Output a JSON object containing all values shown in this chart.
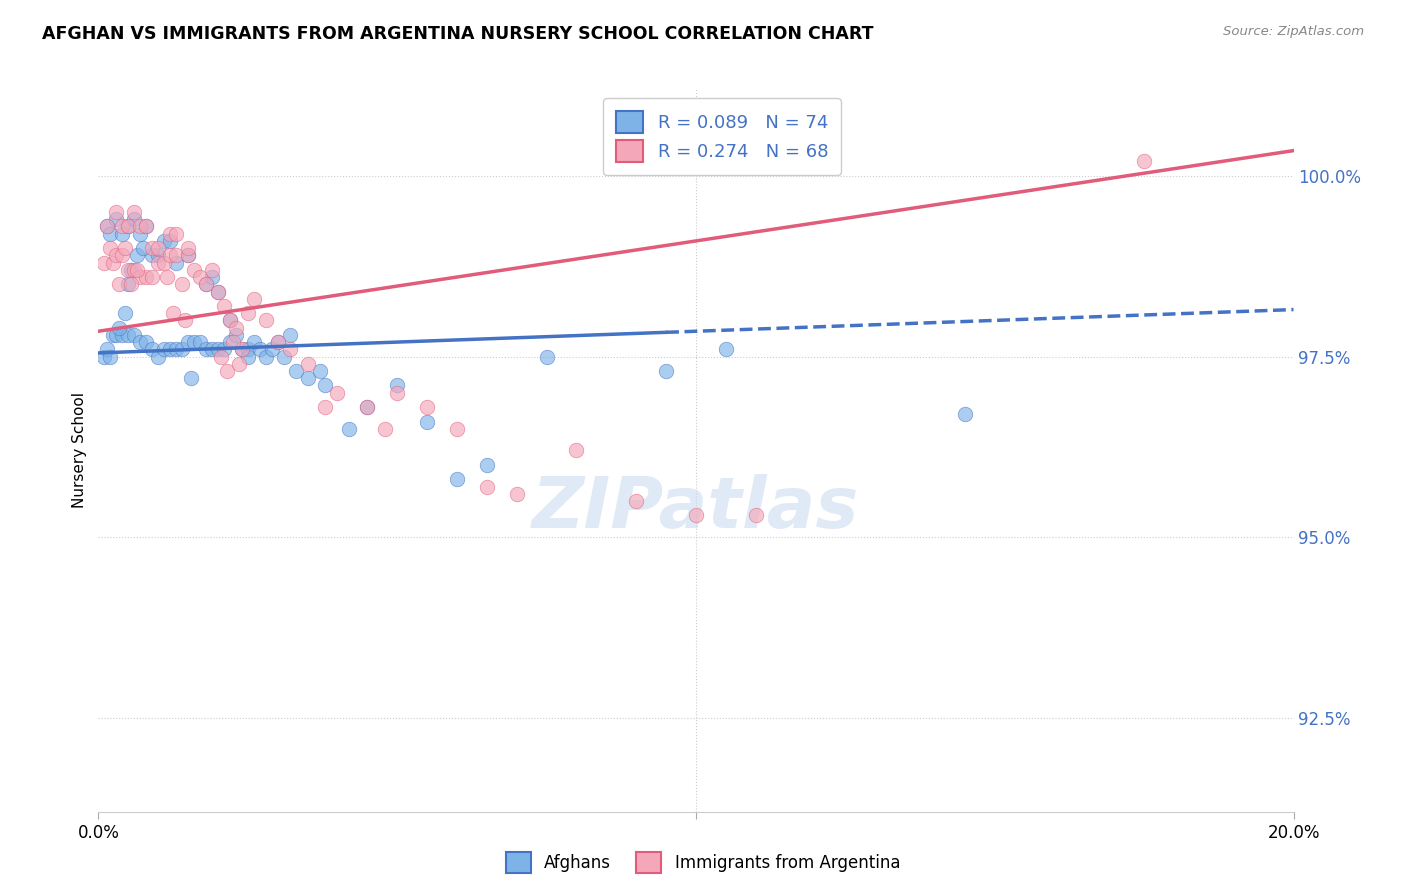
{
  "title": "AFGHAN VS IMMIGRANTS FROM ARGENTINA NURSERY SCHOOL CORRELATION CHART",
  "source": "Source: ZipAtlas.com",
  "ylabel": "Nursery School",
  "ytick_labels": [
    "92.5%",
    "95.0%",
    "97.5%",
    "100.0%"
  ],
  "ytick_values": [
    92.5,
    95.0,
    97.5,
    100.0
  ],
  "xmin": 0.0,
  "xmax": 20.0,
  "ymin": 91.2,
  "ymax": 101.2,
  "R_blue": 0.089,
  "N_blue": 74,
  "R_pink": 0.274,
  "N_pink": 68,
  "blue_color": "#7EB3E8",
  "pink_color": "#F4A7B9",
  "blue_line_color": "#4472C4",
  "pink_line_color": "#E05C7A",
  "legend_label_blue": "Afghans",
  "legend_label_pink": "Immigrants from Argentina",
  "blue_line_x0": 0.0,
  "blue_line_y0": 97.55,
  "blue_line_x1": 20.0,
  "blue_line_y1": 98.15,
  "blue_solid_xend": 9.5,
  "pink_line_x0": 0.0,
  "pink_line_y0": 97.85,
  "pink_line_x1": 20.0,
  "pink_line_y1": 100.35,
  "blue_scatter_x": [
    0.1,
    0.15,
    0.15,
    0.2,
    0.2,
    0.25,
    0.3,
    0.3,
    0.4,
    0.4,
    0.5,
    0.5,
    0.5,
    0.6,
    0.6,
    0.7,
    0.7,
    0.8,
    0.8,
    0.9,
    0.9,
    1.0,
    1.0,
    1.1,
    1.1,
    1.2,
    1.2,
    1.3,
    1.3,
    1.4,
    1.5,
    1.5,
    1.6,
    1.7,
    1.8,
    1.8,
    1.9,
    1.9,
    2.0,
    2.0,
    2.1,
    2.2,
    2.2,
    2.3,
    2.4,
    2.5,
    2.5,
    2.6,
    2.7,
    2.8,
    2.9,
    3.0,
    3.1,
    3.2,
    3.3,
    3.5,
    3.7,
    4.2,
    4.5,
    5.0,
    5.5,
    6.0,
    6.5,
    7.5,
    9.5,
    10.5,
    14.5,
    0.35,
    0.45,
    0.55,
    0.65,
    0.75,
    1.55,
    3.8
  ],
  "blue_scatter_y": [
    97.5,
    97.6,
    99.3,
    97.5,
    99.2,
    97.8,
    97.8,
    99.4,
    97.8,
    99.2,
    97.8,
    98.5,
    99.3,
    97.8,
    99.4,
    97.7,
    99.2,
    97.7,
    99.3,
    97.6,
    98.9,
    97.5,
    98.9,
    97.6,
    99.1,
    97.6,
    99.1,
    97.6,
    98.8,
    97.6,
    97.7,
    98.9,
    97.7,
    97.7,
    97.6,
    98.5,
    97.6,
    98.6,
    97.6,
    98.4,
    97.6,
    97.7,
    98.0,
    97.8,
    97.6,
    97.6,
    97.5,
    97.7,
    97.6,
    97.5,
    97.6,
    97.7,
    97.5,
    97.8,
    97.3,
    97.2,
    97.3,
    96.5,
    96.8,
    97.1,
    96.6,
    95.8,
    96.0,
    97.5,
    97.3,
    97.6,
    96.7,
    97.9,
    98.1,
    98.7,
    98.9,
    99.0,
    97.2,
    97.1
  ],
  "pink_scatter_x": [
    0.1,
    0.15,
    0.2,
    0.25,
    0.3,
    0.3,
    0.4,
    0.4,
    0.5,
    0.5,
    0.6,
    0.6,
    0.7,
    0.7,
    0.8,
    0.8,
    0.9,
    0.9,
    1.0,
    1.0,
    1.1,
    1.2,
    1.2,
    1.3,
    1.3,
    1.4,
    1.5,
    1.5,
    1.6,
    1.7,
    1.8,
    1.9,
    2.0,
    2.1,
    2.2,
    2.3,
    2.4,
    2.5,
    2.6,
    2.8,
    3.0,
    3.2,
    3.5,
    4.0,
    4.5,
    5.0,
    5.5,
    6.0,
    6.5,
    7.0,
    8.0,
    9.0,
    10.0,
    11.0,
    17.5,
    0.35,
    0.45,
    0.55,
    0.65,
    1.15,
    1.25,
    1.45,
    2.05,
    2.15,
    2.25,
    2.35,
    3.8,
    4.8
  ],
  "pink_scatter_y": [
    98.8,
    99.3,
    99.0,
    98.8,
    98.9,
    99.5,
    98.9,
    99.3,
    98.7,
    99.3,
    98.7,
    99.5,
    98.6,
    99.3,
    98.6,
    99.3,
    98.6,
    99.0,
    98.8,
    99.0,
    98.8,
    98.9,
    99.2,
    98.9,
    99.2,
    98.5,
    98.9,
    99.0,
    98.7,
    98.6,
    98.5,
    98.7,
    98.4,
    98.2,
    98.0,
    97.9,
    97.6,
    98.1,
    98.3,
    98.0,
    97.7,
    97.6,
    97.4,
    97.0,
    96.8,
    97.0,
    96.8,
    96.5,
    95.7,
    95.6,
    96.2,
    95.5,
    95.3,
    95.3,
    100.2,
    98.5,
    99.0,
    98.5,
    98.7,
    98.6,
    98.1,
    98.0,
    97.5,
    97.3,
    97.7,
    97.4,
    96.8,
    96.5
  ]
}
